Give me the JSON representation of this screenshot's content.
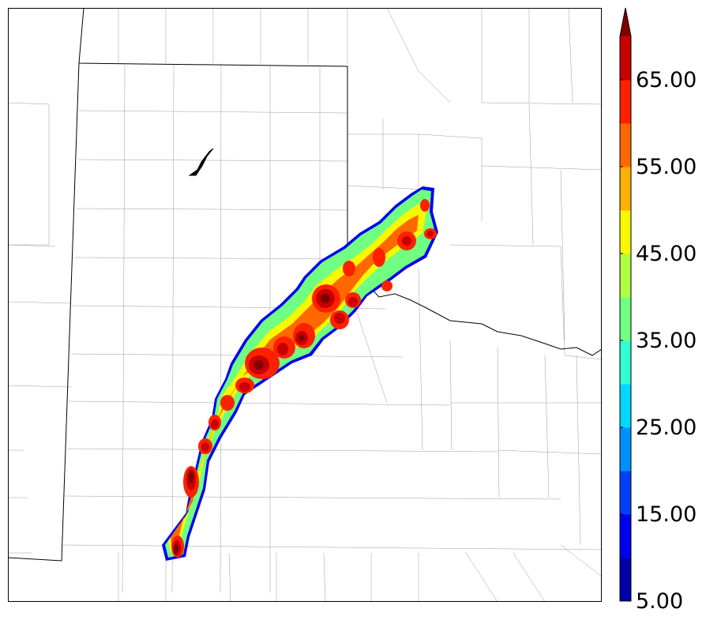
{
  "colorbar": {
    "labels": [
      {
        "value": "65.00",
        "level": 65
      },
      {
        "value": "55.00",
        "level": 55
      },
      {
        "value": "45.00",
        "level": 45
      },
      {
        "value": "35.00",
        "level": 35
      },
      {
        "value": "25.00",
        "level": 25
      },
      {
        "value": "15.00",
        "level": 15
      },
      {
        "value": "5.00",
        "level": 5
      }
    ],
    "min": 5,
    "max": 70,
    "step": 5,
    "extend": "max",
    "colors": [
      "#0000a8",
      "#0000f0",
      "#0040ff",
      "#0090ff",
      "#00d8ff",
      "#30ffd0",
      "#70ff80",
      "#b0ff40",
      "#f8f800",
      "#ffb000",
      "#ff6800",
      "#ff2000",
      "#c80000",
      "#800000"
    ]
  },
  "map": {
    "background": "#ffffff",
    "boundary_color": "#000000",
    "county_color": "#9a9a9a"
  }
}
